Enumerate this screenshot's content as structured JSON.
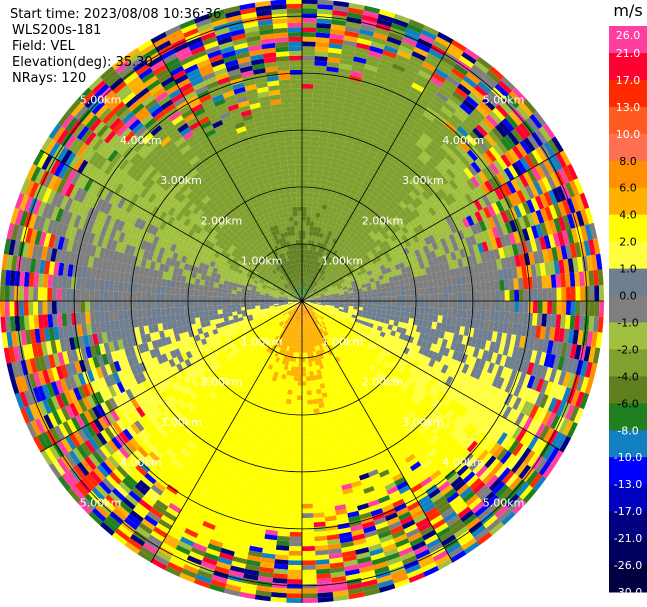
{
  "header": {
    "start_time": "Start time: 2023/08/08 10:36:36",
    "instrument": "WLS200s-181",
    "field": "Field: VEL",
    "elevation": "Elevation(deg): 35.30",
    "nrays": "NRays: 120"
  },
  "colorbar": {
    "title": "m/s",
    "ticks": [
      "26.0",
      "21.0",
      "17.0",
      "13.0",
      "10.0",
      "8.0",
      "6.0",
      "4.0",
      "2.0",
      "1.0",
      "0.0",
      "-1.0",
      "-2.0",
      "-4.0",
      "-6.0",
      "-8.0",
      "-10.0",
      "-13.0",
      "-17.0",
      "-21.0",
      "-26.0",
      "-30.0"
    ],
    "colors": [
      "#ff3fa0",
      "#ff0030",
      "#ff2a00",
      "#ff5a20",
      "#ff7050",
      "#ff9000",
      "#ffb000",
      "#ffff00",
      "#ffff40",
      "#6f7f8f",
      "#7f7f7f",
      "#a0c040",
      "#80a030",
      "#608020",
      "#208020",
      "#1080c0",
      "#0000ff",
      "#0000c0",
      "#000080",
      "#000060",
      "#000040"
    ]
  },
  "chart_data": {
    "type": "polar velocity scan (PPI)",
    "field": "VEL",
    "units": "m/s",
    "nrays": 120,
    "elevation_deg": 35.3,
    "range_rings": [
      "1.00km",
      "2.00km",
      "3.00km",
      "4.00km",
      "5.00km"
    ],
    "range_ring_values_km": [
      1.0,
      2.0,
      3.0,
      4.0,
      5.0
    ],
    "max_range_km": 5.3,
    "scale_min": -30.0,
    "scale_max": 26.0,
    "pattern": {
      "north_sector": "negative velocities (blue near center, green outward)",
      "south_sector": "positive velocities (red near center, orange then yellow outward)",
      "east_west_sectors": "near zero (gray)",
      "outer_ranges": "noisy multi-color returns"
    }
  }
}
